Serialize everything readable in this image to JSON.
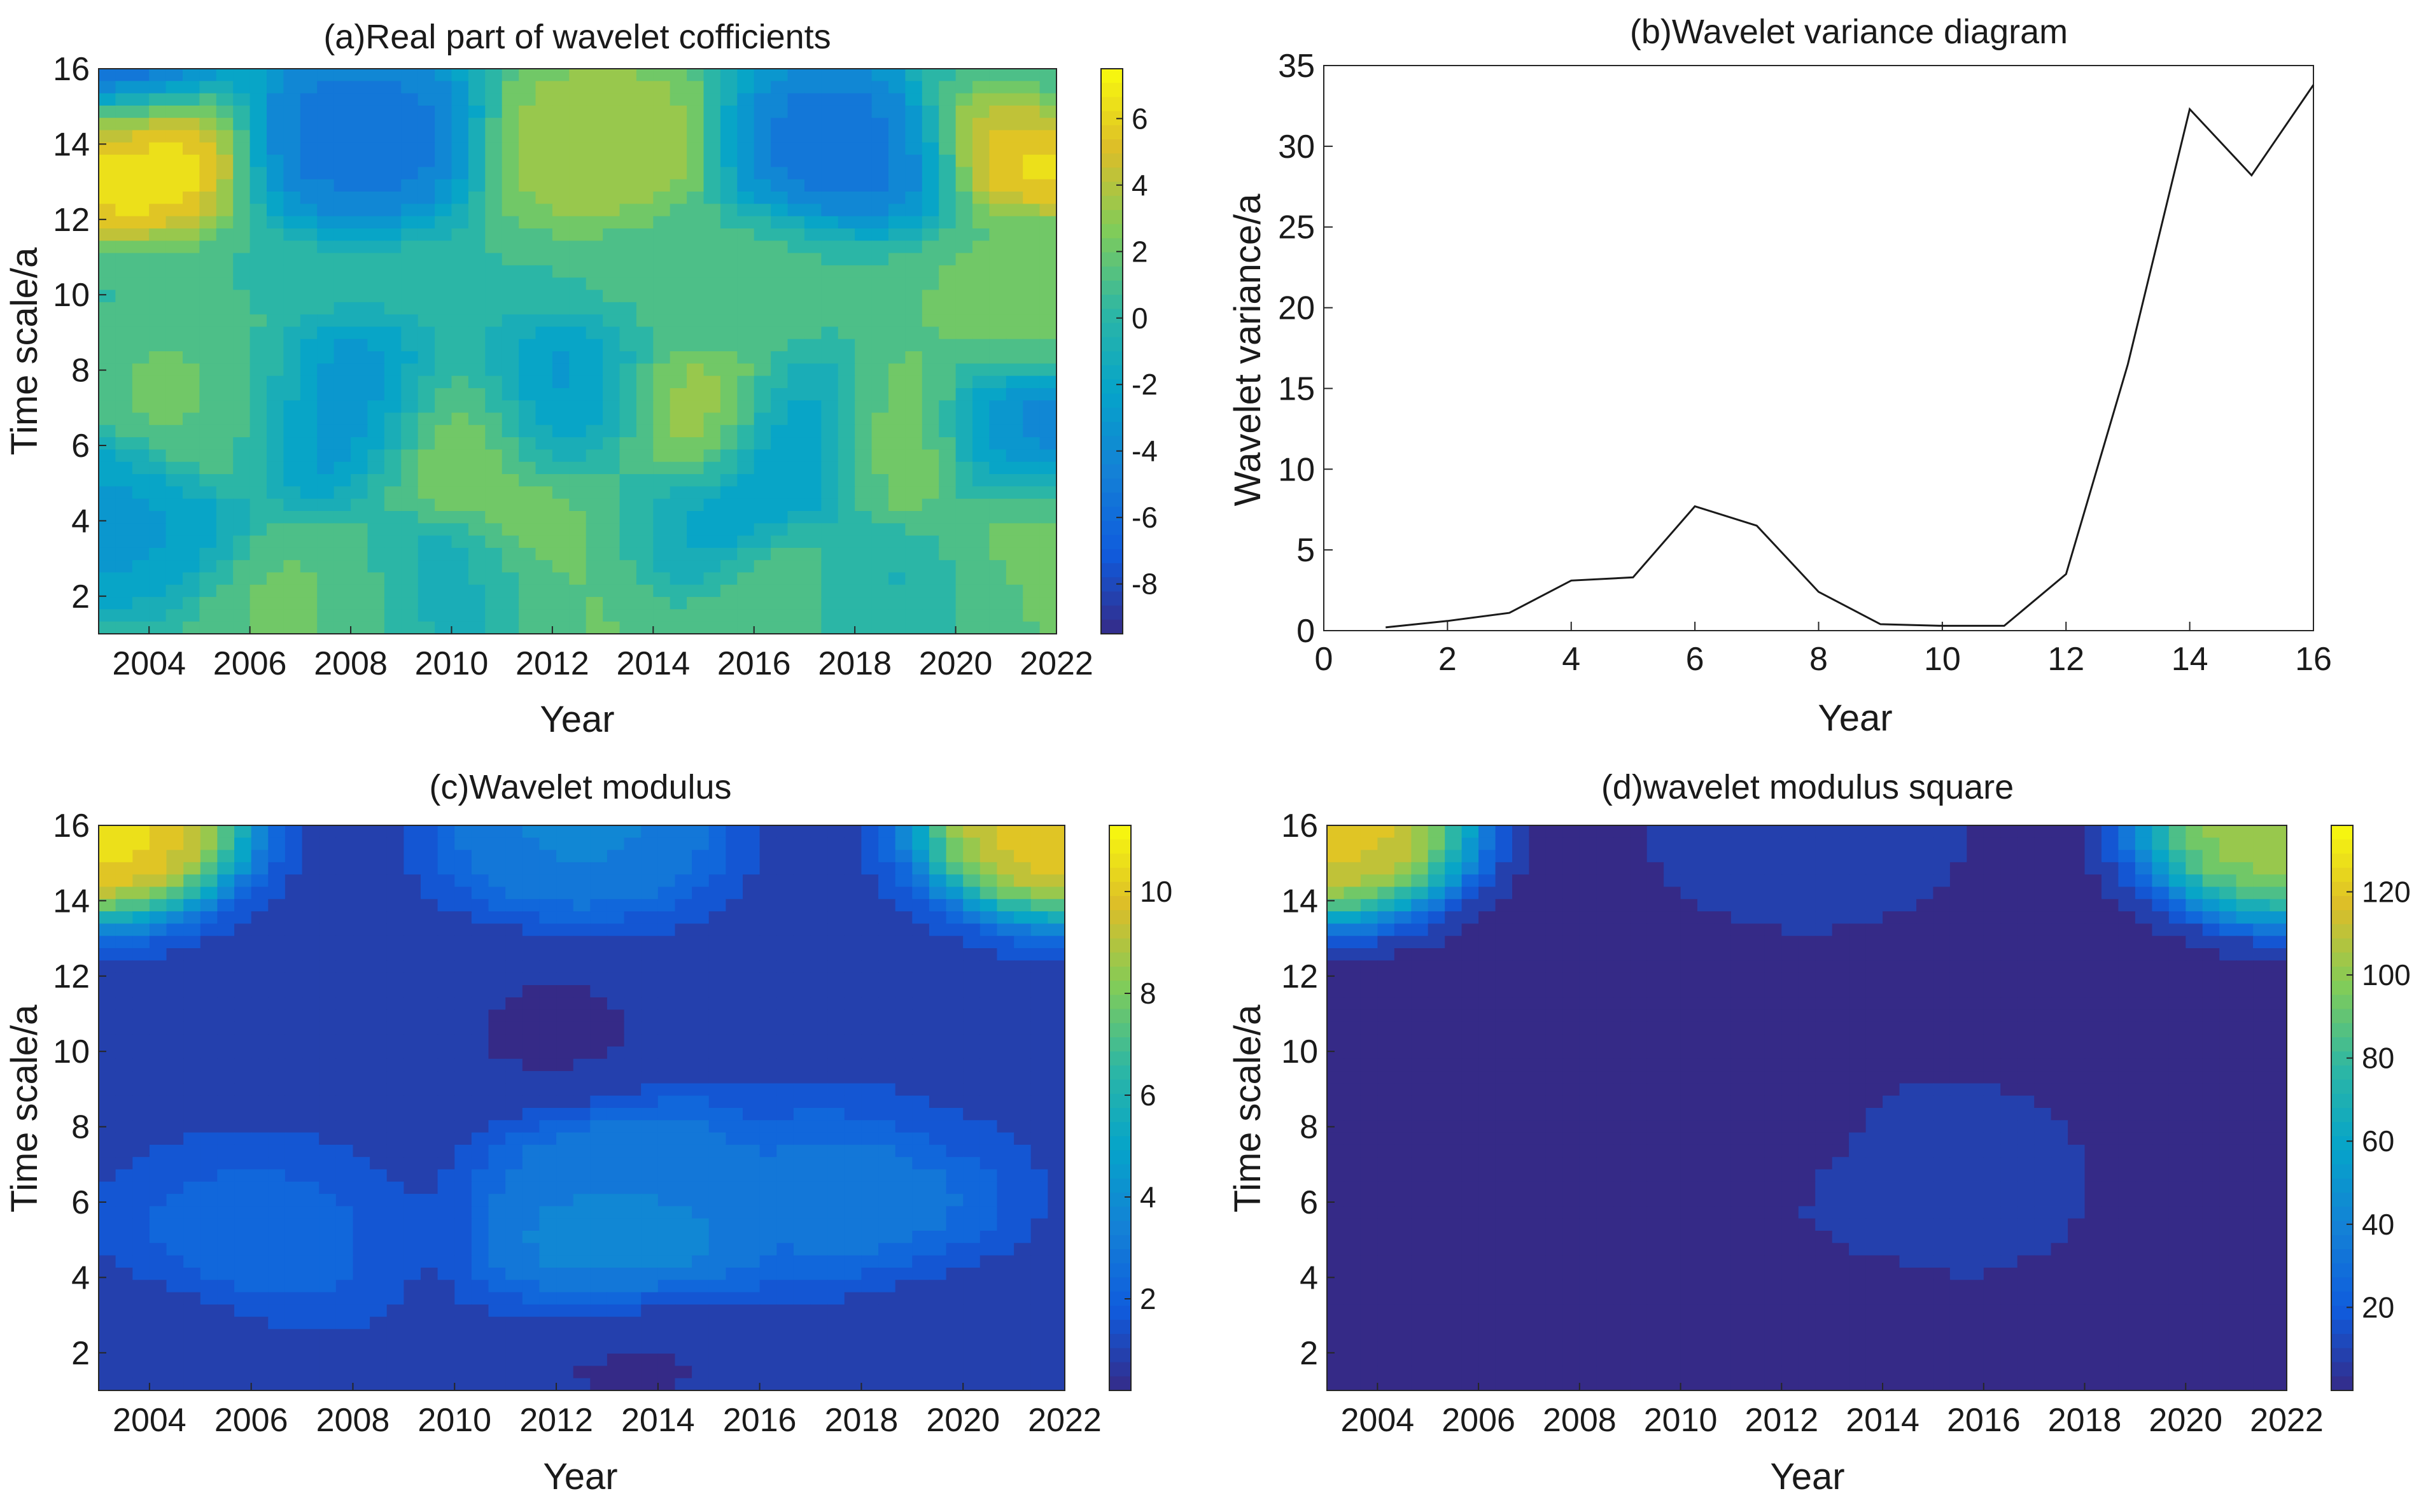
{
  "chart_data": [
    {
      "type": "heatmap",
      "panel": "a",
      "title": "(a)Real part of wavelet cofficients",
      "xlabel": "Year",
      "ylabel": "Time scale/a",
      "xlim": [
        2003,
        2022
      ],
      "ylim": [
        1,
        16
      ],
      "xticks": [
        "2004",
        "2006",
        "2008",
        "2010",
        "2012",
        "2014",
        "2016",
        "2018",
        "2020",
        "2022"
      ],
      "yticks": [
        "2",
        "4",
        "6",
        "8",
        "10",
        "12",
        "14",
        "16"
      ],
      "colorbar": {
        "min": -9.5,
        "max": 7.5,
        "ticks": [
          "6",
          "4",
          "2",
          "0",
          "-2",
          "-4",
          "-6",
          "-8"
        ]
      },
      "colormap": "parula",
      "contour_lines": true,
      "features": [
        {
          "x": 2003.5,
          "y": 14.0,
          "value": 7.3
        },
        {
          "x": 2021.8,
          "y": 14.5,
          "value": 7.0
        },
        {
          "x": 2008.2,
          "y": 14.2,
          "value": -5.5
        },
        {
          "x": 2013.0,
          "y": 14.0,
          "value": 3.5
        },
        {
          "x": 2017.7,
          "y": 14.0,
          "value": -5.5
        },
        {
          "x": 2003.0,
          "y": 16.0,
          "value": -8.0
        },
        {
          "x": 2022.0,
          "y": 16.0,
          "value": -2.0
        },
        {
          "x": 2005.5,
          "y": 7.0,
          "value": 2.0
        },
        {
          "x": 2007.8,
          "y": 6.8,
          "value": -4.5
        },
        {
          "x": 2010.2,
          "y": 6.2,
          "value": 3.5
        },
        {
          "x": 2012.4,
          "y": 6.8,
          "value": -4.0
        },
        {
          "x": 2014.7,
          "y": 6.5,
          "value": 5.0
        },
        {
          "x": 2017.0,
          "y": 6.0,
          "value": -5.0
        },
        {
          "x": 2018.8,
          "y": 6.0,
          "value": 5.0
        },
        {
          "x": 2021.2,
          "y": 6.0,
          "value": -5.0
        },
        {
          "x": 2013.0,
          "y": 4.0,
          "value": 4.0
        },
        {
          "x": 2014.2,
          "y": 4.0,
          "value": -4.0
        },
        {
          "x": 2003.0,
          "y": 4.0,
          "value": -3.0
        },
        {
          "x": 2021.5,
          "y": 4.0,
          "value": 2.5
        },
        {
          "x": 2008.0,
          "y": 1.8,
          "value": 2.0
        },
        {
          "x": 2020.5,
          "y": 1.8,
          "value": 2.0
        },
        {
          "x": 2012.0,
          "y": 2.0,
          "value": 2.0
        },
        {
          "x": 2010.0,
          "y": 2.0,
          "value": -2.0
        },
        {
          "x": 2017.0,
          "y": 2.0,
          "value": 2.0
        },
        {
          "x": 2018.8,
          "y": 2.0,
          "value": -2.0
        },
        {
          "x": 2021.5,
          "y": 9.7,
          "value": 2.0
        },
        {
          "x": 2015.5,
          "y": 10.3,
          "value": 0.8
        }
      ]
    },
    {
      "type": "line",
      "panel": "b",
      "title": "(b)Wavelet variance diagram",
      "xlabel": "Year",
      "ylabel": "Wavelet variance/a",
      "xlim": [
        0,
        16
      ],
      "ylim": [
        0,
        35
      ],
      "xticks": [
        "0",
        "2",
        "4",
        "6",
        "8",
        "10",
        "12",
        "14",
        "16"
      ],
      "yticks": [
        "0",
        "5",
        "10",
        "15",
        "20",
        "25",
        "30",
        "35"
      ],
      "x": [
        1,
        2,
        3,
        4,
        5,
        6,
        7,
        8,
        9,
        10,
        11,
        12,
        13,
        14,
        15,
        16
      ],
      "series": [
        {
          "values": [
            0.2,
            0.6,
            1.1,
            3.1,
            3.3,
            7.7,
            6.5,
            2.4,
            0.4,
            0.3,
            0.3,
            3.5,
            16.5,
            32.3,
            28.2,
            33.8
          ]
        }
      ]
    },
    {
      "type": "heatmap",
      "panel": "c",
      "title": "(c)Wavelet modulus",
      "xlabel": "Year",
      "ylabel": "Time scale/a",
      "xlim": [
        2003,
        2022
      ],
      "ylim": [
        1,
        16
      ],
      "xticks": [
        "2004",
        "2006",
        "2008",
        "2010",
        "2012",
        "2014",
        "2016",
        "2018",
        "2020",
        "2022"
      ],
      "yticks": [
        "2",
        "4",
        "6",
        "8",
        "10",
        "12",
        "14",
        "16"
      ],
      "colorbar": {
        "min": 0.2,
        "max": 11.3,
        "ticks": [
          "10",
          "8",
          "6",
          "4",
          "2"
        ]
      },
      "colormap": "parula",
      "contour_lines": true,
      "features": [
        {
          "x": 2003.0,
          "y": 16.0,
          "value": 11.0
        },
        {
          "x": 2022.0,
          "y": 16.0,
          "value": 10.5
        },
        {
          "x": 2012.5,
          "y": 16.0,
          "value": 3.5
        },
        {
          "x": 2012.0,
          "y": 10.5,
          "value": 0.5
        },
        {
          "x": 2020.0,
          "y": 9.3,
          "value": 1.2
        },
        {
          "x": 2013.5,
          "y": 6.5,
          "value": 3.2
        },
        {
          "x": 2018.0,
          "y": 6.2,
          "value": 3.0
        },
        {
          "x": 2013.3,
          "y": 5.0,
          "value": 3.8
        },
        {
          "x": 2006.0,
          "y": 5.0,
          "value": 2.2
        },
        {
          "x": 2004.0,
          "y": 2.0,
          "value": 0.6
        },
        {
          "x": 2013.5,
          "y": 2.0,
          "value": 0.5
        },
        {
          "x": 2020.0,
          "y": 2.5,
          "value": 1.0
        }
      ]
    },
    {
      "type": "heatmap",
      "panel": "d",
      "title": "(d)wavelet modulus square",
      "xlabel": "Year",
      "ylabel": "Time scale/a",
      "xlim": [
        2003,
        2022
      ],
      "ylim": [
        1,
        16
      ],
      "xticks": [
        "2004",
        "2006",
        "2008",
        "2010",
        "2012",
        "2014",
        "2016",
        "2018",
        "2020",
        "2022"
      ],
      "yticks": [
        "2",
        "4",
        "6",
        "8",
        "10",
        "12",
        "14",
        "16"
      ],
      "colorbar": {
        "min": 0,
        "max": 136,
        "ticks": [
          "120",
          "100",
          "80",
          "60",
          "40",
          "20"
        ]
      },
      "colormap": "parula",
      "contour_lines": true,
      "features": [
        {
          "x": 2003.0,
          "y": 16.0,
          "value": 125
        },
        {
          "x": 2022.0,
          "y": 16.0,
          "value": 110
        },
        {
          "x": 2012.5,
          "y": 16.0,
          "value": 12
        },
        {
          "x": 2012.0,
          "y": 8.0,
          "value": 2
        },
        {
          "x": 2015.0,
          "y": 6.6,
          "value": 10
        },
        {
          "x": 2013.0,
          "y": 3.0,
          "value": 3
        }
      ]
    }
  ]
}
